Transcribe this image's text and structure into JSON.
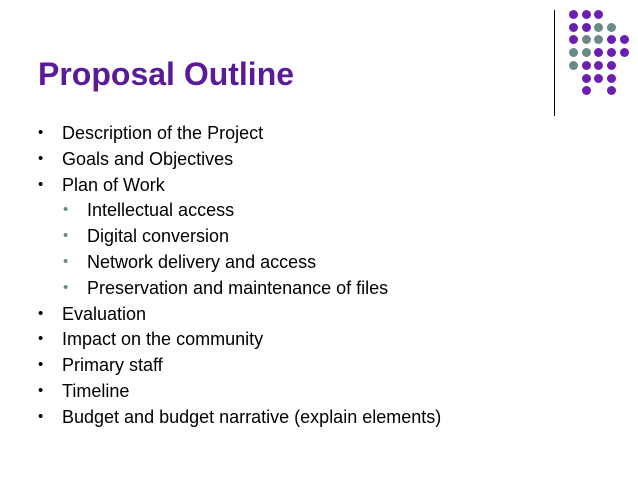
{
  "slide": {
    "title": "Proposal Outline",
    "bullets": [
      {
        "text": "Description of the Project",
        "level": 1
      },
      {
        "text": "Goals and Objectives",
        "level": 1
      },
      {
        "text": "Plan of Work",
        "level": 1
      },
      {
        "text": "Intellectual access",
        "level": 2
      },
      {
        "text": "Digital conversion",
        "level": 2
      },
      {
        "text": "Network delivery and access",
        "level": 2
      },
      {
        "text": "Preservation and maintenance of files",
        "level": 2
      },
      {
        "text": "Evaluation",
        "level": 1
      },
      {
        "text": "Impact on the community",
        "level": 1
      },
      {
        "text": "Primary staff",
        "level": 1
      },
      {
        "text": "Timeline",
        "level": 1
      },
      {
        "text": "Budget and budget narrative (explain elements)",
        "level": 1
      }
    ],
    "bullet_glyph": "•"
  },
  "colors": {
    "title": "#5a1a9a",
    "purple_dot": "#6b1fb0",
    "teal_dot": "#6a8a8a",
    "sub_bullet": "#6a8a8a"
  },
  "decoration": {
    "dot_grid": [
      [
        "p",
        "p",
        "p",
        "",
        ""
      ],
      [
        "p",
        "p",
        "t",
        "t",
        ""
      ],
      [
        "p",
        "t",
        "t",
        "p",
        "p"
      ],
      [
        "t",
        "t",
        "p",
        "p",
        "p"
      ],
      [
        "t",
        "p",
        "p",
        "p",
        ""
      ],
      [
        "",
        "p",
        "p",
        "p",
        ""
      ],
      [
        "",
        "p",
        "",
        "p",
        ""
      ]
    ]
  }
}
